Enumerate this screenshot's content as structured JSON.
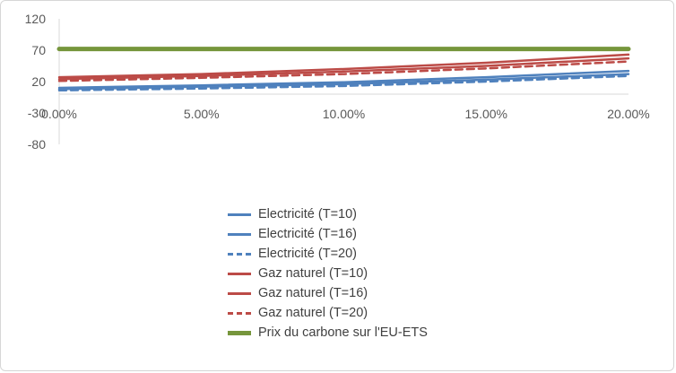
{
  "chart_data": {
    "type": "line",
    "title": "",
    "xlabel": "",
    "ylabel": "",
    "xlim": [
      0,
      20
    ],
    "ylim": [
      -80,
      120
    ],
    "grid": false,
    "legend_position": "bottom-center",
    "axis_label_color": "#595959",
    "axis_line_color": "#d9d9d9",
    "y_ticks": [
      {
        "v": 120,
        "label": "120"
      },
      {
        "v": 70,
        "label": "70"
      },
      {
        "v": 20,
        "label": "20"
      },
      {
        "v": -30,
        "label": "-30"
      },
      {
        "v": -80,
        "label": "-80"
      }
    ],
    "x_ticks": [
      {
        "v": 0,
        "label": "0.00%"
      },
      {
        "v": 5,
        "label": "5.00%"
      },
      {
        "v": 10,
        "label": "10.00%"
      },
      {
        "v": 15,
        "label": "15.00%"
      },
      {
        "v": 20,
        "label": "20.00%"
      }
    ],
    "x": [
      0,
      5,
      10,
      15,
      20
    ],
    "series": [
      {
        "name": "Electricité (T=10)",
        "color": "#4f81bd",
        "dash": false,
        "width": 2.5,
        "legend_thickness": 3,
        "values": [
          10,
          14,
          19,
          27,
          37
        ]
      },
      {
        "name": "Electricité (T=16)",
        "color": "#4f81bd",
        "dash": false,
        "width": 2.5,
        "legend_thickness": 3,
        "values": [
          8,
          12,
          16,
          23,
          32
        ]
      },
      {
        "name": "Electricité (T=20)",
        "color": "#4f81bd",
        "dash": true,
        "width": 2.5,
        "legend_thickness": 3,
        "values": [
          6,
          9,
          13,
          20,
          29
        ]
      },
      {
        "name": "Gaz naturel (T=10)",
        "color": "#bc4b47",
        "dash": false,
        "width": 2.5,
        "legend_thickness": 3,
        "values": [
          27,
          32,
          40,
          50,
          63
        ]
      },
      {
        "name": "Gaz naturel (T=16)",
        "color": "#bc4b47",
        "dash": false,
        "width": 2.5,
        "legend_thickness": 3,
        "values": [
          24,
          29,
          36,
          45,
          57
        ]
      },
      {
        "name": "Gaz naturel (T=20)",
        "color": "#bc4b47",
        "dash": true,
        "width": 2.5,
        "legend_thickness": 3,
        "values": [
          21,
          26,
          32,
          41,
          52
        ]
      },
      {
        "name": "Prix du carbone sur l'EU-ETS",
        "color": "#76963c",
        "dash": false,
        "width": 5,
        "legend_thickness": 5,
        "values": [
          72,
          72,
          72,
          72,
          72
        ]
      }
    ]
  }
}
